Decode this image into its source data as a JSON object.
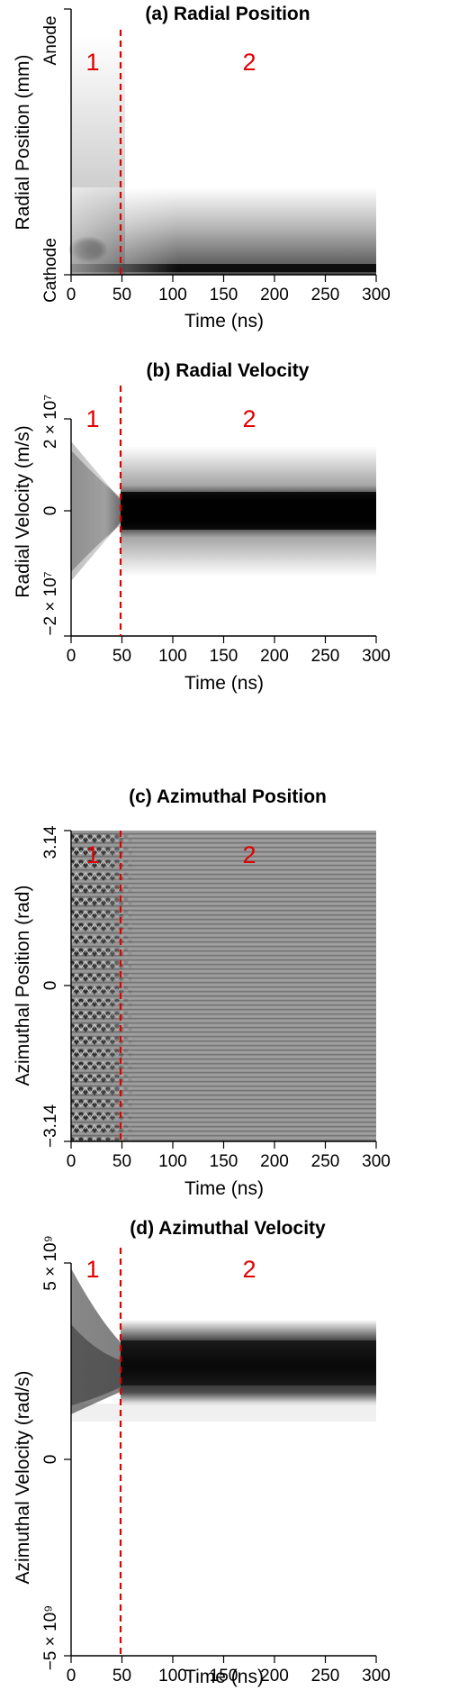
{
  "chart_data": [
    {
      "type": "heatmap",
      "title": "(a) Radial Position",
      "xlabel": "Time (ns)",
      "ylabel": "Radial Position (mm)",
      "x_ticks": [
        "0",
        "50",
        "100",
        "150",
        "200",
        "250",
        "300"
      ],
      "xlim": [
        0,
        300
      ],
      "y_ticks": [
        {
          "label": "Cathode",
          "value": 0
        },
        {
          "label": "Anode",
          "value": 1
        }
      ],
      "ylim": [
        0,
        1
      ],
      "divider": {
        "x": 50,
        "style": "dashed",
        "color": "#e00000"
      },
      "regions": [
        "1",
        "2"
      ],
      "colors": {
        "density_high": "#000000",
        "density_low": "#ffffff"
      }
    },
    {
      "type": "heatmap",
      "title": "(b) Radial Velocity",
      "xlabel": "Time (ns)",
      "ylabel": "Radial Velocity (m/s)",
      "x_ticks": [
        "0",
        "50",
        "100",
        "150",
        "200",
        "250",
        "300"
      ],
      "xlim": [
        0,
        300
      ],
      "y_ticks": [
        {
          "label": "−2 × 10⁷",
          "value": -20000000
        },
        {
          "label": "0",
          "value": 0
        },
        {
          "label": "2 × 10⁷",
          "value": 20000000
        }
      ],
      "ylim": [
        -20000000,
        20000000
      ],
      "divider": {
        "x": 50,
        "style": "dashed",
        "color": "#e00000"
      },
      "regions": [
        "1",
        "2"
      ],
      "colors": {
        "density_high": "#000000",
        "density_low": "#ffffff"
      }
    },
    {
      "type": "heatmap",
      "title": "(c) Azimuthal Position",
      "xlabel": "Time (ns)",
      "ylabel": "Azimuthal Position (rad)",
      "x_ticks": [
        "0",
        "50",
        "100",
        "150",
        "200",
        "250",
        "300"
      ],
      "xlim": [
        0,
        300
      ],
      "y_ticks": [
        {
          "label": "−3.14",
          "value": -3.14
        },
        {
          "label": "0",
          "value": 0
        },
        {
          "label": "3.14",
          "value": 3.14
        }
      ],
      "ylim": [
        -3.14,
        3.14
      ],
      "divider": {
        "x": 50,
        "style": "dashed",
        "color": "#e00000"
      },
      "regions": [
        "1",
        "2"
      ],
      "colors": {
        "density_high": "#000000",
        "density_low": "#ffffff"
      }
    },
    {
      "type": "heatmap",
      "title": "(d) Azimuthal Velocity",
      "xlabel": "Time (ns)",
      "ylabel": "Azimuthal Velocity (rad/s)",
      "x_ticks": [
        "0",
        "50",
        "100",
        "150",
        "200",
        "250",
        "300"
      ],
      "xlim": [
        0,
        300
      ],
      "y_ticks": [
        {
          "label": "−5 × 10⁹",
          "value": -5000000000
        },
        {
          "label": "0",
          "value": 0
        },
        {
          "label": "5 × 10⁹",
          "value": 5000000000
        }
      ],
      "ylim": [
        -5000000000,
        5000000000
      ],
      "divider": {
        "x": 50,
        "style": "dashed",
        "color": "#e00000"
      },
      "regions": [
        "1",
        "2"
      ],
      "colors": {
        "density_high": "#000000",
        "density_low": "#ffffff"
      }
    }
  ]
}
